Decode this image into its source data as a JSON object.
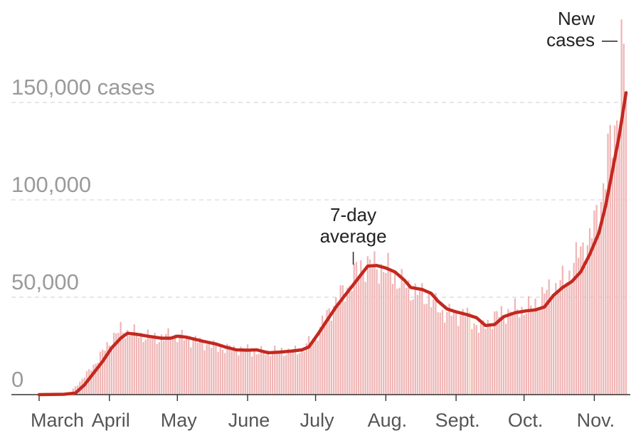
{
  "chart_data": {
    "type": "bar",
    "title": "",
    "xlabel": "",
    "ylabel": "",
    "ylim": [
      0,
      185000
    ],
    "grid": true,
    "y_ticks": [
      {
        "value": 0,
        "label": "0"
      },
      {
        "value": 50000,
        "label": "50,000"
      },
      {
        "value": 100000,
        "label": "100,000"
      },
      {
        "value": 150000,
        "label": "150,000 cases"
      }
    ],
    "x_ticks": [
      {
        "date": "2020-03-01",
        "label": "March"
      },
      {
        "date": "2020-04-01",
        "label": "April"
      },
      {
        "date": "2020-05-01",
        "label": "May"
      },
      {
        "date": "2020-06-01",
        "label": "June"
      },
      {
        "date": "2020-07-01",
        "label": "July"
      },
      {
        "date": "2020-08-01",
        "label": "Aug."
      },
      {
        "date": "2020-09-01",
        "label": "Sept."
      },
      {
        "date": "2020-10-01",
        "label": "Oct."
      },
      {
        "date": "2020-11-01",
        "label": "Nov."
      }
    ],
    "x_range": [
      "2020-03-01",
      "2020-11-15"
    ],
    "bar_color": "#f0b6b6",
    "highlight_color": "#f7d9a8",
    "line_color": "#c3281f",
    "annotations": [
      {
        "text": [
          "7-day",
          "average"
        ],
        "date": "2020-07-17",
        "value": 66000
      },
      {
        "text": [
          "New",
          "cases"
        ],
        "date": "2020-11-13",
        "value": 180000
      }
    ],
    "series": [
      {
        "type": "bar",
        "highlight_date": "2020-09-07",
        "points": [
          [
            "2020-03-01",
            0
          ],
          [
            "2020-03-10",
            300
          ],
          [
            "2020-03-15",
            1500
          ],
          [
            "2020-03-20",
            8000
          ],
          [
            "2020-03-25",
            15000
          ],
          [
            "2020-03-28",
            20000
          ],
          [
            "2020-04-03",
            30000
          ],
          [
            "2020-04-06",
            33000
          ],
          [
            "2020-04-10",
            32000
          ],
          [
            "2020-04-15",
            30500
          ],
          [
            "2020-04-20",
            29500
          ],
          [
            "2020-04-25",
            29000
          ],
          [
            "2020-04-28",
            31000
          ],
          [
            "2020-05-01",
            30000
          ],
          [
            "2020-05-10",
            27500
          ],
          [
            "2020-05-20",
            24000
          ],
          [
            "2020-06-01",
            23000
          ],
          [
            "2020-06-05",
            21500
          ],
          [
            "2020-06-15",
            22500
          ],
          [
            "2020-06-20",
            22000
          ],
          [
            "2020-06-25",
            23000
          ],
          [
            "2020-07-01",
            30000
          ],
          [
            "2020-07-05",
            39000
          ],
          [
            "2020-07-10",
            48000
          ],
          [
            "2020-07-15",
            55000
          ],
          [
            "2020-07-19",
            63000
          ],
          [
            "2020-07-22",
            67000
          ],
          [
            "2020-07-28",
            66000
          ],
          [
            "2020-08-03",
            63000
          ],
          [
            "2020-08-08",
            57000
          ],
          [
            "2020-08-15",
            52000
          ],
          [
            "2020-08-20",
            50000
          ],
          [
            "2020-08-25",
            43000
          ],
          [
            "2020-09-01",
            41000
          ],
          [
            "2020-09-05",
            42000
          ],
          [
            "2020-09-08",
            38000
          ],
          [
            "2020-09-12",
            34000
          ],
          [
            "2020-09-18",
            40000
          ],
          [
            "2020-09-25",
            43000
          ],
          [
            "2020-10-01",
            44000
          ],
          [
            "2020-10-05",
            45000
          ],
          [
            "2020-10-10",
            52000
          ],
          [
            "2020-10-15",
            55000
          ],
          [
            "2020-10-20",
            60000
          ],
          [
            "2020-10-25",
            72000
          ],
          [
            "2020-10-30",
            80000
          ],
          [
            "2020-11-03",
            94000
          ],
          [
            "2020-11-07",
            122000
          ],
          [
            "2020-11-10",
            135000
          ],
          [
            "2020-11-12",
            155000
          ],
          [
            "2020-11-13",
            180000
          ],
          [
            "2020-11-14",
            168000
          ],
          [
            "2020-11-15",
            160000
          ]
        ]
      },
      {
        "type": "line",
        "points": [
          [
            "2020-03-01",
            0
          ],
          [
            "2020-03-12",
            200
          ],
          [
            "2020-03-17",
            800
          ],
          [
            "2020-03-21",
            5000
          ],
          [
            "2020-03-25",
            11000
          ],
          [
            "2020-03-29",
            17000
          ],
          [
            "2020-04-02",
            24000
          ],
          [
            "2020-04-06",
            29000
          ],
          [
            "2020-04-09",
            31500
          ],
          [
            "2020-04-13",
            31000
          ],
          [
            "2020-04-18",
            30000
          ],
          [
            "2020-04-24",
            29000
          ],
          [
            "2020-04-28",
            29000
          ],
          [
            "2020-05-01",
            30000
          ],
          [
            "2020-05-05",
            29500
          ],
          [
            "2020-05-12",
            27500
          ],
          [
            "2020-05-18",
            26000
          ],
          [
            "2020-05-22",
            24500
          ],
          [
            "2020-05-27",
            23000
          ],
          [
            "2020-06-01",
            22800
          ],
          [
            "2020-06-05",
            23000
          ],
          [
            "2020-06-10",
            21500
          ],
          [
            "2020-06-15",
            21800
          ],
          [
            "2020-06-20",
            22300
          ],
          [
            "2020-06-25",
            23000
          ],
          [
            "2020-06-28",
            24500
          ],
          [
            "2020-07-02",
            31000
          ],
          [
            "2020-07-06",
            38000
          ],
          [
            "2020-07-10",
            45000
          ],
          [
            "2020-07-14",
            51000
          ],
          [
            "2020-07-18",
            57000
          ],
          [
            "2020-07-22",
            63000
          ],
          [
            "2020-07-24",
            66000
          ],
          [
            "2020-07-28",
            66300
          ],
          [
            "2020-08-01",
            65000
          ],
          [
            "2020-08-05",
            63000
          ],
          [
            "2020-08-09",
            59000
          ],
          [
            "2020-08-12",
            55000
          ],
          [
            "2020-08-17",
            54000
          ],
          [
            "2020-08-21",
            52000
          ],
          [
            "2020-08-24",
            48000
          ],
          [
            "2020-08-28",
            44000
          ],
          [
            "2020-09-01",
            42500
          ],
          [
            "2020-09-06",
            41000
          ],
          [
            "2020-09-10",
            39500
          ],
          [
            "2020-09-14",
            35500
          ],
          [
            "2020-09-18",
            36000
          ],
          [
            "2020-09-22",
            40000
          ],
          [
            "2020-09-27",
            42000
          ],
          [
            "2020-10-02",
            43000
          ],
          [
            "2020-10-06",
            43500
          ],
          [
            "2020-10-10",
            45000
          ],
          [
            "2020-10-14",
            51000
          ],
          [
            "2020-10-18",
            55000
          ],
          [
            "2020-10-22",
            58000
          ],
          [
            "2020-10-26",
            63000
          ],
          [
            "2020-10-30",
            72000
          ],
          [
            "2020-11-03",
            83000
          ],
          [
            "2020-11-06",
            97000
          ],
          [
            "2020-11-09",
            115000
          ],
          [
            "2020-11-12",
            133000
          ],
          [
            "2020-11-15",
            155000
          ]
        ]
      }
    ]
  }
}
